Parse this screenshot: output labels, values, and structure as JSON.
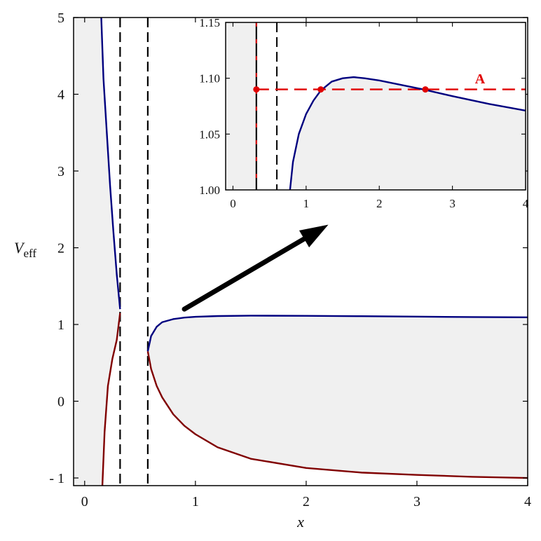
{
  "chart_data": [
    {
      "type": "line",
      "title": "",
      "xlabel": "x",
      "ylabel": "V",
      "ylabel_sub": "eff",
      "xlim": [
        -0.1,
        4
      ],
      "ylim": [
        -1.1,
        5
      ],
      "x_ticks": [
        0,
        1,
        2,
        3,
        4
      ],
      "y_ticks": [
        -1,
        0,
        1,
        2,
        3,
        4,
        5
      ],
      "x_tick_labels": [
        "0",
        "1",
        "2",
        "3",
        "4"
      ],
      "y_tick_labels": [
        "- 1",
        "0",
        "1",
        "2",
        "3",
        "4",
        "5"
      ],
      "grid": false,
      "shaded_regions": [
        {
          "fill": "#f0f0f0",
          "description_boundary": "inner"
        },
        {
          "fill": "#f0f0f0",
          "description_boundary": "outer"
        }
      ],
      "vertical_dashed_lines": [
        0.32,
        0.57
      ],
      "series": [
        {
          "color": "#00007f",
          "x": [
            0.15,
            0.17,
            0.2,
            0.23,
            0.26,
            0.29,
            0.32
          ],
          "y": [
            5.0,
            4.2,
            3.5,
            2.8,
            2.2,
            1.65,
            1.2
          ]
        },
        {
          "color": "#800000",
          "x": [
            0.16,
            0.18,
            0.21,
            0.25,
            0.29,
            0.32
          ],
          "y": [
            -1.1,
            -0.4,
            0.2,
            0.55,
            0.8,
            1.15
          ]
        },
        {
          "color": "#00007f",
          "x": [
            0.57,
            0.6,
            0.65,
            0.7,
            0.8,
            0.9,
            1.0,
            1.2,
            1.5,
            2.0,
            2.5,
            3.0,
            3.5,
            4.0
          ],
          "y": [
            0.65,
            0.85,
            0.97,
            1.03,
            1.07,
            1.09,
            1.1,
            1.11,
            1.115,
            1.113,
            1.108,
            1.102,
            1.097,
            1.093
          ]
        },
        {
          "color": "#800000",
          "x": [
            0.57,
            0.6,
            0.65,
            0.7,
            0.8,
            0.9,
            1.0,
            1.2,
            1.5,
            2.0,
            2.5,
            3.0,
            3.5,
            4.0
          ],
          "y": [
            0.65,
            0.42,
            0.2,
            0.05,
            -0.17,
            -0.32,
            -0.43,
            -0.6,
            -0.75,
            -0.87,
            -0.93,
            -0.96,
            -0.985,
            -1.0
          ]
        }
      ],
      "annotations": [
        {
          "type": "arrow",
          "from": [
            0.9,
            1.2
          ],
          "to": [
            2.2,
            2.3
          ]
        }
      ]
    },
    {
      "type": "line",
      "title": "",
      "xlabel": "",
      "ylabel": "",
      "xlim": [
        -0.1,
        4
      ],
      "ylim": [
        1.0,
        1.15
      ],
      "x_ticks": [
        0,
        1,
        2,
        3,
        4
      ],
      "y_ticks": [
        1.0,
        1.05,
        1.1,
        1.15
      ],
      "x_tick_labels": [
        "0",
        "1",
        "2",
        "3",
        "4"
      ],
      "y_tick_labels": [
        "1.00",
        "1.05",
        "1.10",
        "1.15"
      ],
      "grid": false,
      "vertical_lines": [
        {
          "x": 0.32,
          "style": "solid",
          "color": "#000000"
        },
        {
          "x": 0.32,
          "style": "dashed",
          "color": "#e00000"
        },
        {
          "x": 0.6,
          "style": "dashed",
          "color": "#000000"
        }
      ],
      "series": [
        {
          "color": "#00007f",
          "x": [
            0.78,
            0.82,
            0.9,
            1.0,
            1.1,
            1.2,
            1.35,
            1.5,
            1.65,
            1.8,
            2.0,
            2.3,
            2.6,
            3.0,
            3.5,
            4.0
          ],
          "y": [
            1.0,
            1.025,
            1.05,
            1.068,
            1.08,
            1.089,
            1.097,
            1.1,
            1.101,
            1.1,
            1.098,
            1.094,
            1.09,
            1.084,
            1.077,
            1.071
          ]
        }
      ],
      "horizontal_lines": [
        {
          "y": 1.09,
          "from_x": 0.32,
          "to_x": 4.0,
          "style": "dashed",
          "color": "#e00000",
          "label": "A"
        }
      ],
      "points": [
        {
          "x": 0.32,
          "y": 1.09,
          "color": "#e00000"
        },
        {
          "x": 1.2,
          "y": 1.09,
          "color": "#e00000"
        },
        {
          "x": 2.63,
          "y": 1.09,
          "color": "#e00000"
        }
      ]
    }
  ]
}
